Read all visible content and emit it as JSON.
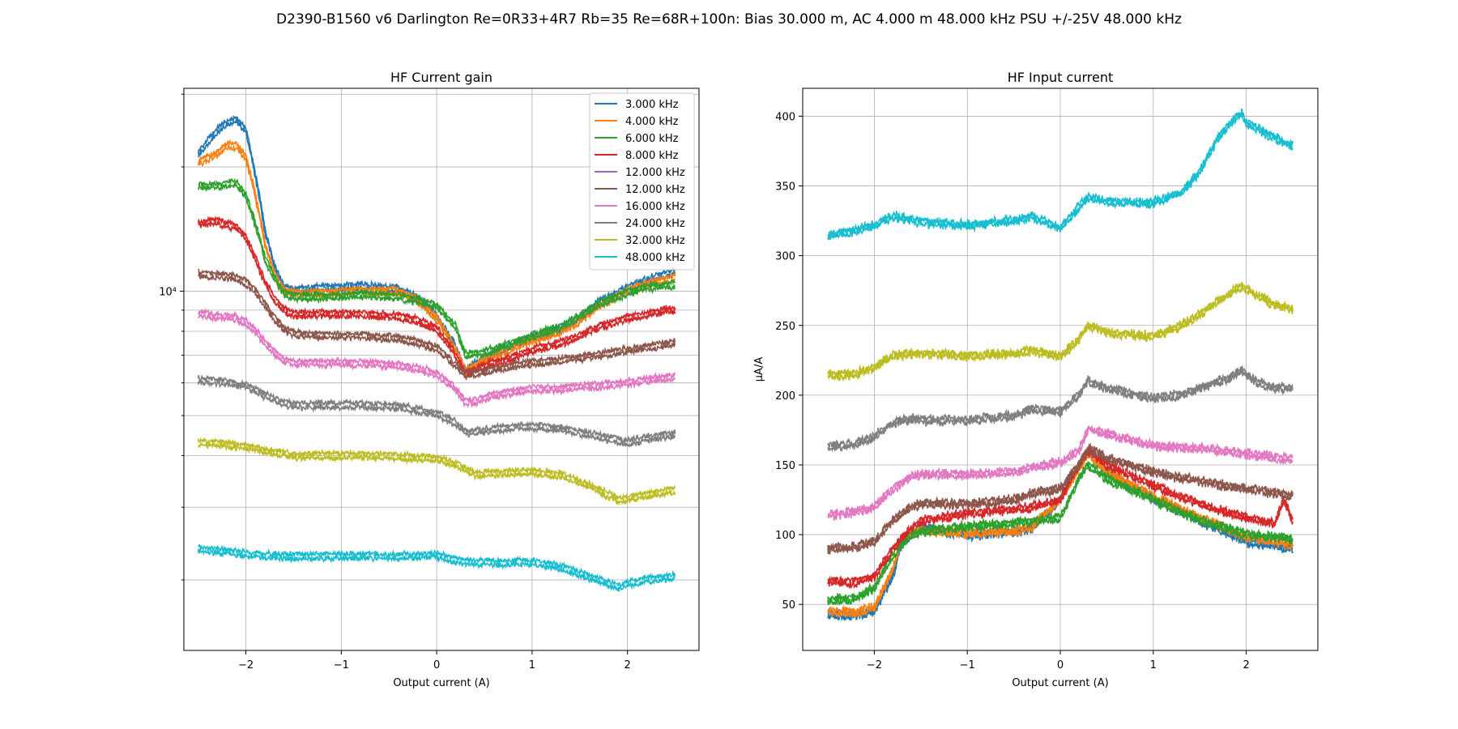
{
  "figure": {
    "suptitle": "D2390-B1560 v6 Darlington Re=0R33+4R7 Rb=35 Re=68R+100n: Bias 30.000 m, AC 4.000 m 48.000 kHz PSU +/-25V 48.000 kHz"
  },
  "chart_data": [
    {
      "type": "line",
      "title": "HF Current gain",
      "xlabel": "Output current (A)",
      "ylabel": "",
      "yscale": "log",
      "xlim": [
        -2.65,
        2.75
      ],
      "ylim": [
        1350,
        31000
      ],
      "xticks": [
        -2,
        -1,
        0,
        1,
        2
      ],
      "xticklabels": [
        "−2",
        "−1",
        "0",
        "1",
        "2"
      ],
      "ytick_label": "10⁴",
      "ytick_value": 10000,
      "grid": true,
      "legend_position": "top-right",
      "series": [
        {
          "name": "3.000 kHz",
          "color": "#1f77b4",
          "x": [
            -2.5,
            -2.3,
            -2.2,
            -2.1,
            -2.0,
            -1.9,
            -1.8,
            -1.7,
            -1.6,
            -1.5,
            -1.2,
            -0.8,
            -0.4,
            -0.2,
            0.0,
            0.2,
            0.3,
            0.5,
            0.8,
            1.0,
            1.3,
            1.5,
            1.7,
            2.0,
            2.2,
            2.5
          ],
          "y": [
            21500,
            24500,
            25500,
            26000,
            24500,
            19000,
            14000,
            11500,
            10200,
            10000,
            10200,
            10300,
            10100,
            9600,
            8700,
            7300,
            6400,
            6900,
            7400,
            7700,
            8100,
            8600,
            9400,
            10200,
            10600,
            11200
          ]
        },
        {
          "name": "4.000 kHz",
          "color": "#ff7f0e",
          "x": [
            -2.5,
            -2.3,
            -2.2,
            -2.1,
            -2.0,
            -1.9,
            -1.8,
            -1.7,
            -1.6,
            -1.5,
            -1.2,
            -0.8,
            -0.4,
            -0.2,
            0.0,
            0.2,
            0.3,
            0.5,
            0.8,
            1.0,
            1.3,
            1.5,
            1.7,
            2.0,
            2.2,
            2.5
          ],
          "y": [
            20500,
            21500,
            22500,
            22500,
            21000,
            17000,
            13000,
            11000,
            10000,
            9900,
            9900,
            10000,
            10000,
            9500,
            8600,
            7200,
            6400,
            6800,
            7300,
            7600,
            8000,
            8500,
            9200,
            10000,
            10400,
            10800
          ]
        },
        {
          "name": "6.000 kHz",
          "color": "#2ca02c",
          "x": [
            -2.5,
            -2.3,
            -2.2,
            -2.1,
            -2.0,
            -1.9,
            -1.8,
            -1.7,
            -1.6,
            -1.5,
            -1.2,
            -0.8,
            -0.4,
            -0.2,
            0.0,
            0.2,
            0.3,
            0.5,
            0.8,
            1.0,
            1.3,
            1.5,
            1.7,
            2.0,
            2.2,
            2.5
          ],
          "y": [
            18000,
            18000,
            18200,
            18200,
            17000,
            14500,
            12000,
            10700,
            9900,
            9700,
            9700,
            9800,
            9700,
            9500,
            9200,
            8200,
            7000,
            7100,
            7500,
            7800,
            8200,
            8700,
            9300,
            9900,
            10200,
            10400
          ]
        },
        {
          "name": "8.000 kHz",
          "color": "#d62728",
          "x": [
            -2.5,
            -2.3,
            -2.2,
            -2.1,
            -2.0,
            -1.9,
            -1.8,
            -1.7,
            -1.6,
            -1.5,
            -1.2,
            -0.8,
            -0.4,
            -0.2,
            0.0,
            0.2,
            0.3,
            0.5,
            0.8,
            1.0,
            1.3,
            1.5,
            1.7,
            2.0,
            2.2,
            2.4,
            2.5
          ],
          "y": [
            14500,
            14800,
            14500,
            14300,
            13500,
            12000,
            10500,
            9600,
            9000,
            8800,
            8800,
            8800,
            8700,
            8500,
            8100,
            7000,
            6300,
            6600,
            6900,
            7200,
            7500,
            7800,
            8200,
            8600,
            8800,
            9000,
            9000
          ]
        },
        {
          "name": "12.000 kHz",
          "color": "#9467bd",
          "x": [
            -2.5,
            -2.0,
            -1.5,
            -1.0,
            -0.5,
            0.0,
            0.3,
            1.0,
            1.5,
            2.0,
            2.5
          ],
          "y": [
            11000,
            10500,
            8000,
            7800,
            7700,
            7200,
            6300,
            6600,
            6900,
            7200,
            7500
          ]
        },
        {
          "name": "12.000 kHz",
          "color": "#8c564b",
          "x": [
            -2.5,
            -2.3,
            -2.1,
            -2.0,
            -1.9,
            -1.8,
            -1.7,
            -1.6,
            -1.5,
            -1.2,
            -0.8,
            -0.4,
            -0.2,
            0.0,
            0.2,
            0.3,
            0.5,
            0.8,
            1.0,
            1.3,
            1.5,
            1.7,
            2.0,
            2.2,
            2.5
          ],
          "y": [
            11000,
            10900,
            10800,
            10500,
            10000,
            9300,
            8600,
            8100,
            7900,
            7800,
            7800,
            7700,
            7500,
            7300,
            6600,
            6300,
            6400,
            6600,
            6700,
            6800,
            6900,
            7000,
            7200,
            7300,
            7500
          ]
        },
        {
          "name": "16.000 kHz",
          "color": "#e377c2",
          "x": [
            -2.5,
            -2.3,
            -2.1,
            -2.0,
            -1.9,
            -1.8,
            -1.7,
            -1.6,
            -1.5,
            -1.2,
            -0.8,
            -0.4,
            -0.2,
            0.0,
            0.2,
            0.3,
            0.4,
            0.6,
            0.8,
            1.0,
            1.3,
            1.5,
            1.7,
            2.0,
            2.2,
            2.5
          ],
          "y": [
            8800,
            8700,
            8600,
            8400,
            8000,
            7500,
            7100,
            6800,
            6700,
            6700,
            6700,
            6600,
            6500,
            6300,
            5800,
            5400,
            5400,
            5600,
            5700,
            5800,
            5800,
            5900,
            5900,
            6000,
            6100,
            6200
          ]
        },
        {
          "name": "24.000 kHz",
          "color": "#7f7f7f",
          "x": [
            -2.5,
            -2.3,
            -2.0,
            -1.8,
            -1.6,
            -1.5,
            -1.2,
            -0.8,
            -0.4,
            -0.2,
            0.0,
            0.2,
            0.3,
            0.5,
            0.8,
            1.0,
            1.3,
            1.5,
            1.7,
            2.0,
            2.2,
            2.5
          ],
          "y": [
            6100,
            6050,
            5900,
            5600,
            5350,
            5300,
            5300,
            5300,
            5250,
            5150,
            5050,
            4800,
            4550,
            4600,
            4700,
            4700,
            4650,
            4550,
            4450,
            4300,
            4400,
            4500
          ]
        },
        {
          "name": "32.000 kHz",
          "color": "#bcbd22",
          "x": [
            -2.5,
            -2.2,
            -2.0,
            -1.8,
            -1.6,
            -1.5,
            -1.2,
            -0.8,
            -0.4,
            -0.2,
            0.0,
            0.2,
            0.3,
            0.4,
            0.6,
            1.0,
            1.3,
            1.5,
            1.7,
            1.9,
            2.1,
            2.3,
            2.5
          ],
          "y": [
            4300,
            4250,
            4200,
            4100,
            4050,
            4000,
            4000,
            4000,
            3980,
            3950,
            3930,
            3820,
            3700,
            3600,
            3620,
            3650,
            3600,
            3450,
            3300,
            3120,
            3180,
            3250,
            3300
          ]
        },
        {
          "name": "48.000 kHz",
          "color": "#17becf",
          "x": [
            -2.5,
            -2.2,
            -2.0,
            -1.8,
            -1.6,
            -1.5,
            -1.2,
            -0.8,
            -0.4,
            -0.2,
            0.0,
            0.2,
            0.4,
            0.7,
            1.0,
            1.2,
            1.4,
            1.6,
            1.8,
            1.9,
            2.0,
            2.2,
            2.5
          ],
          "y": [
            2370,
            2340,
            2310,
            2290,
            2280,
            2280,
            2285,
            2285,
            2280,
            2290,
            2300,
            2230,
            2200,
            2200,
            2210,
            2170,
            2110,
            2030,
            1960,
            1920,
            1950,
            2000,
            2030
          ]
        }
      ]
    },
    {
      "type": "line",
      "title": "HF Input current",
      "xlabel": "Output current (A)",
      "ylabel": "µA/A",
      "xlim": [
        -2.77,
        2.77
      ],
      "ylim": [
        17,
        420
      ],
      "xticks": [
        -2,
        -1,
        0,
        1,
        2
      ],
      "xticklabels": [
        "−2",
        "−1",
        "0",
        "1",
        "2"
      ],
      "yticks": [
        50,
        100,
        150,
        200,
        250,
        300,
        350,
        400
      ],
      "yticklabels": [
        "50",
        "100",
        "150",
        "200",
        "250",
        "300",
        "350",
        "400"
      ],
      "grid": true,
      "series": [
        {
          "name": "3.000 kHz",
          "color": "#1f77b4",
          "x": [
            -2.5,
            -2.2,
            -2.0,
            -1.8,
            -1.7,
            -1.5,
            -1.0,
            -0.5,
            -0.3,
            0.0,
            0.2,
            0.3,
            0.5,
            1.0,
            1.5,
            2.0,
            2.5
          ],
          "y": [
            43,
            42,
            45,
            70,
            95,
            105,
            100,
            102,
            105,
            125,
            150,
            160,
            145,
            125,
            110,
            95,
            90
          ]
        },
        {
          "name": "4.000 kHz",
          "color": "#ff7f0e",
          "x": [
            -2.5,
            -2.2,
            -2.0,
            -1.8,
            -1.7,
            -1.5,
            -1.0,
            -0.5,
            -0.3,
            0.0,
            0.2,
            0.3,
            0.5,
            1.0,
            1.5,
            2.0,
            2.5
          ],
          "y": [
            45,
            44,
            48,
            75,
            98,
            103,
            101,
            102,
            106,
            125,
            148,
            158,
            145,
            127,
            112,
            98,
            93
          ]
        },
        {
          "name": "6.000 kHz",
          "color": "#2ca02c",
          "x": [
            -2.5,
            -2.2,
            -2.0,
            -1.8,
            -1.6,
            -1.5,
            -1.0,
            -0.5,
            -0.3,
            0.0,
            0.2,
            0.3,
            0.5,
            1.0,
            1.5,
            2.0,
            2.5
          ],
          "y": [
            53,
            54,
            62,
            85,
            100,
            102,
            106,
            108,
            110,
            112,
            140,
            150,
            140,
            125,
            110,
            100,
            97
          ]
        },
        {
          "name": "8.000 kHz",
          "color": "#d62728",
          "x": [
            -2.5,
            -2.2,
            -2.0,
            -1.8,
            -1.6,
            -1.5,
            -1.0,
            -0.5,
            -0.3,
            0.0,
            0.2,
            0.3,
            0.5,
            1.0,
            1.5,
            2.0,
            2.3,
            2.4,
            2.5
          ],
          "y": [
            66,
            66,
            70,
            90,
            105,
            110,
            115,
            118,
            120,
            125,
            150,
            160,
            150,
            135,
            122,
            112,
            108,
            125,
            110
          ]
        },
        {
          "name": "12.000 kHz",
          "color": "#9467bd",
          "x": [
            -2.5,
            -2.0,
            -1.5,
            -1.0,
            -0.5,
            0.0,
            0.3,
            0.5,
            1.0,
            1.5,
            2.0,
            2.5
          ],
          "y": [
            90,
            95,
            120,
            122,
            125,
            130,
            160,
            155,
            145,
            140,
            135,
            129
          ]
        },
        {
          "name": "12.000 kHz",
          "color": "#8c564b",
          "x": [
            -2.5,
            -2.2,
            -2.0,
            -1.8,
            -1.6,
            -1.5,
            -1.0,
            -0.5,
            -0.3,
            0.0,
            0.2,
            0.3,
            0.5,
            1.0,
            1.5,
            2.0,
            2.5
          ],
          "y": [
            90,
            91,
            95,
            110,
            120,
            122,
            122,
            125,
            130,
            133,
            150,
            162,
            155,
            145,
            138,
            133,
            128
          ]
        },
        {
          "name": "16.000 kHz",
          "color": "#e377c2",
          "x": [
            -2.5,
            -2.2,
            -2.0,
            -1.8,
            -1.6,
            -1.5,
            -1.0,
            -0.5,
            -0.3,
            0.0,
            0.2,
            0.3,
            0.5,
            1.0,
            1.5,
            2.0,
            2.5
          ],
          "y": [
            114,
            116,
            120,
            133,
            142,
            143,
            143,
            145,
            148,
            152,
            160,
            176,
            172,
            164,
            162,
            158,
            154
          ]
        },
        {
          "name": "24.000 kHz",
          "color": "#7f7f7f",
          "x": [
            -2.5,
            -2.2,
            -2.0,
            -1.8,
            -1.6,
            -1.5,
            -1.0,
            -0.5,
            -0.3,
            0.0,
            0.2,
            0.3,
            0.5,
            1.0,
            1.3,
            1.5,
            1.8,
            1.95,
            2.1,
            2.3,
            2.5
          ],
          "y": [
            163,
            165,
            170,
            180,
            183,
            182,
            182,
            185,
            190,
            188,
            200,
            210,
            205,
            198,
            200,
            205,
            212,
            218,
            210,
            205,
            205
          ]
        },
        {
          "name": "32.000 kHz",
          "color": "#bcbd22",
          "x": [
            -2.5,
            -2.2,
            -2.0,
            -1.8,
            -1.6,
            -1.5,
            -1.0,
            -0.5,
            -0.3,
            0.0,
            0.2,
            0.3,
            0.5,
            1.0,
            1.3,
            1.5,
            1.8,
            1.95,
            2.1,
            2.3,
            2.5
          ],
          "y": [
            214,
            215,
            220,
            228,
            230,
            230,
            228,
            230,
            232,
            228,
            240,
            250,
            245,
            242,
            250,
            258,
            272,
            278,
            272,
            265,
            262
          ]
        },
        {
          "name": "48.000 kHz",
          "color": "#17becf",
          "x": [
            -2.5,
            -2.2,
            -2.0,
            -1.8,
            -1.6,
            -1.5,
            -1.0,
            -0.5,
            -0.3,
            0.0,
            0.2,
            0.3,
            0.5,
            1.0,
            1.3,
            1.5,
            1.7,
            1.9,
            1.95,
            2.0,
            2.2,
            2.5
          ],
          "y": [
            314,
            318,
            322,
            328,
            326,
            324,
            322,
            325,
            328,
            320,
            335,
            342,
            338,
            338,
            345,
            360,
            385,
            400,
            402,
            395,
            388,
            378
          ]
        }
      ]
    }
  ]
}
